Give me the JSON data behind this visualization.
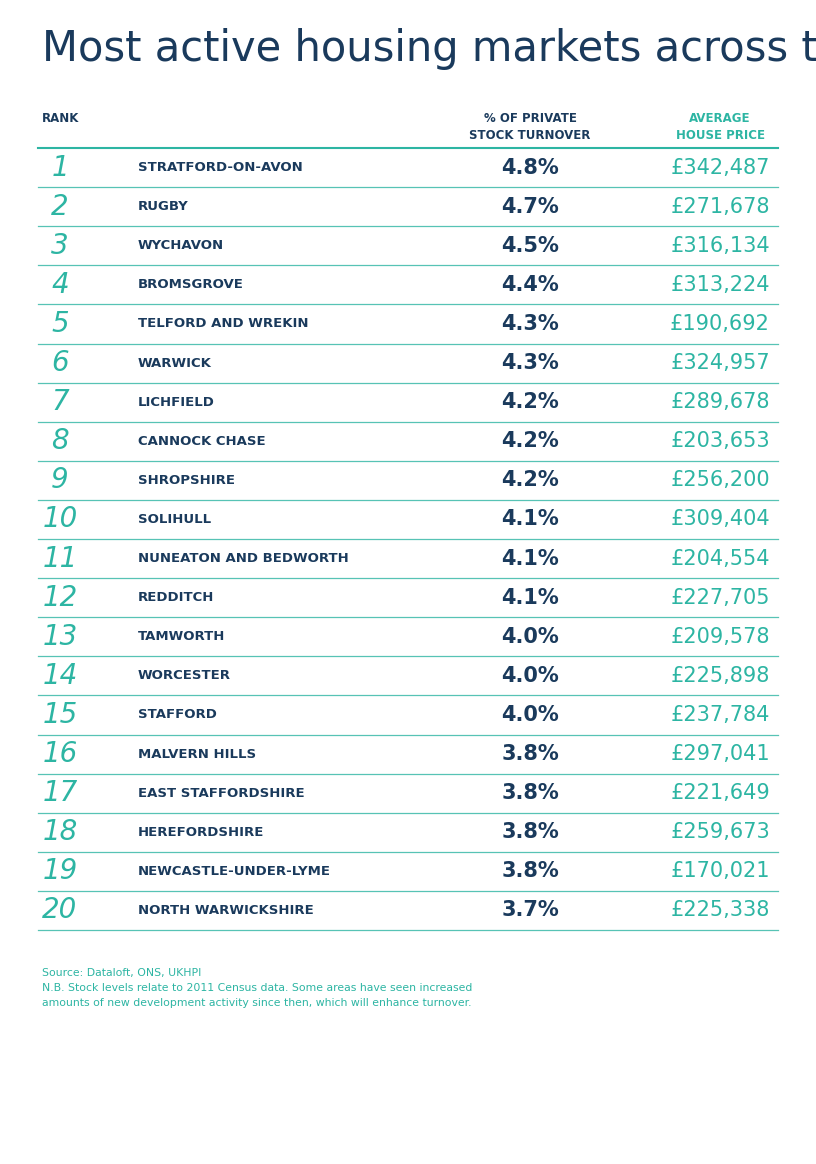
{
  "title": "Most active housing markets across the region",
  "title_color": "#1a3a5c",
  "title_fontsize": 30,
  "header_rank": "RANK",
  "header_turnover": "% OF PRIVATE\nSTOCK TURNOVER",
  "header_price": "AVERAGE\nHOUSE PRICE",
  "header_color_rank": "#1a3a5c",
  "header_color_turnover": "#1a3a5c",
  "header_color_price": "#2db5a3",
  "rank_color": "#2db5a3",
  "name_color": "#1a3a5c",
  "turnover_color": "#1a3a5c",
  "price_color": "#2db5a3",
  "line_color": "#2db5a3",
  "background_color": "#ffffff",
  "source_text": "Source: Dataloft, ONS, UKHPI\nN.B. Stock levels relate to 2011 Census data. Some areas have seen increased\namounts of new development activity since then, which will enhance turnover.",
  "source_color": "#2db5a3",
  "rows": [
    {
      "rank": "1",
      "name": "STRATFORD-ON-AVON",
      "turnover": "4.8%",
      "price": "£342,487"
    },
    {
      "rank": "2",
      "name": "RUGBY",
      "turnover": "4.7%",
      "price": "£271,678"
    },
    {
      "rank": "3",
      "name": "WYCHAVON",
      "turnover": "4.5%",
      "price": "£316,134"
    },
    {
      "rank": "4",
      "name": "BROMSGROVE",
      "turnover": "4.4%",
      "price": "£313,224"
    },
    {
      "rank": "5",
      "name": "TELFORD AND WREKIN",
      "turnover": "4.3%",
      "price": "£190,692"
    },
    {
      "rank": "6",
      "name": "WARWICK",
      "turnover": "4.3%",
      "price": "£324,957"
    },
    {
      "rank": "7",
      "name": "LICHFIELD",
      "turnover": "4.2%",
      "price": "£289,678"
    },
    {
      "rank": "8",
      "name": "CANNOCK CHASE",
      "turnover": "4.2%",
      "price": "£203,653"
    },
    {
      "rank": "9",
      "name": "SHROPSHIRE",
      "turnover": "4.2%",
      "price": "£256,200"
    },
    {
      "rank": "10",
      "name": "SOLIHULL",
      "turnover": "4.1%",
      "price": "£309,404"
    },
    {
      "rank": "11",
      "name": "NUNEATON AND BEDWORTH",
      "turnover": "4.1%",
      "price": "£204,554"
    },
    {
      "rank": "12",
      "name": "REDDITCH",
      "turnover": "4.1%",
      "price": "£227,705"
    },
    {
      "rank": "13",
      "name": "TAMWORTH",
      "turnover": "4.0%",
      "price": "£209,578"
    },
    {
      "rank": "14",
      "name": "WORCESTER",
      "turnover": "4.0%",
      "price": "£225,898"
    },
    {
      "rank": "15",
      "name": "STAFFORD",
      "turnover": "4.0%",
      "price": "£237,784"
    },
    {
      "rank": "16",
      "name": "MALVERN HILLS",
      "turnover": "3.8%",
      "price": "£297,041"
    },
    {
      "rank": "17",
      "name": "EAST STAFFORDSHIRE",
      "turnover": "3.8%",
      "price": "£221,649"
    },
    {
      "rank": "18",
      "name": "HEREFORDSHIRE",
      "turnover": "3.8%",
      "price": "£259,673"
    },
    {
      "rank": "19",
      "name": "NEWCASTLE-UNDER-LYME",
      "turnover": "3.8%",
      "price": "£170,021"
    },
    {
      "rank": "20",
      "name": "NORTH WARWICKSHIRE",
      "turnover": "3.7%",
      "price": "£225,338"
    }
  ]
}
